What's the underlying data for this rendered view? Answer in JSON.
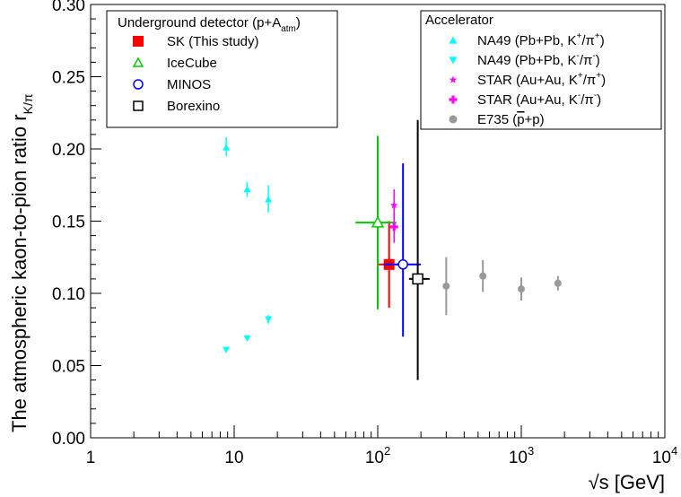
{
  "chart_data": {
    "type": "scatter",
    "xscale": "log",
    "xlim": [
      1,
      10000
    ],
    "ylim": [
      0,
      0.3
    ],
    "xlabel": "√s [GeV]",
    "ylabel": "The atmospheric kaon-to-pion ratio r",
    "ylabel_sub": "K/π",
    "x_ticks": [
      {
        "v": 1,
        "base": "1",
        "exp": ""
      },
      {
        "v": 10,
        "base": "10",
        "exp": ""
      },
      {
        "v": 100,
        "base": "10",
        "exp": "2"
      },
      {
        "v": 1000,
        "base": "10",
        "exp": "3"
      },
      {
        "v": 10000,
        "base": "10",
        "exp": "4"
      }
    ],
    "y_ticks": [
      {
        "v": 0.0,
        "label": "0.00"
      },
      {
        "v": 0.05,
        "label": "0.05"
      },
      {
        "v": 0.1,
        "label": "0.10"
      },
      {
        "v": 0.15,
        "label": "0.15"
      },
      {
        "v": 0.2,
        "label": "0.20"
      },
      {
        "v": 0.25,
        "label": "0.25"
      },
      {
        "v": 0.3,
        "label": "0.30"
      }
    ],
    "underground_legend": {
      "title_main": "Underground detector (p+A",
      "title_sub": "atm",
      "title_end": ")",
      "entries": [
        {
          "series": "sk",
          "label": "SK (This study)"
        },
        {
          "series": "icecube",
          "label": "IceCube"
        },
        {
          "series": "minos",
          "label": "MINOS"
        },
        {
          "series": "borexino",
          "label": "Borexino"
        }
      ]
    },
    "accelerator_legend": {
      "title": "Accelerator",
      "entries": [
        {
          "series": "na49_plus",
          "pre": "NA49 (Pb+Pb, K",
          "sup1": "+",
          "mid": "/π",
          "sup2": "+",
          "post": ")"
        },
        {
          "series": "na49_minus",
          "pre": "NA49 (Pb+Pb, K",
          "sup1": "-",
          "mid": "/π",
          "sup2": "-",
          "post": ")"
        },
        {
          "series": "star_plus",
          "pre": "STAR (Au+Au, K",
          "sup1": "+",
          "mid": "/π",
          "sup2": "+",
          "post": ")"
        },
        {
          "series": "star_minus",
          "pre": "STAR (Au+Au, K",
          "sup1": "-",
          "mid": "/π",
          "sup2": "-",
          "post": ")"
        },
        {
          "series": "e735",
          "pre": "E735 (",
          "over": "p",
          "mid": "+p)",
          "sup1": "",
          "sup2": "",
          "post": ""
        }
      ]
    },
    "series": [
      {
        "id": "sk",
        "marker": "square-filled",
        "color": "#ff0000",
        "points": [
          {
            "x": 120,
            "y": 0.12,
            "ylo": 0.09,
            "yhi": 0.15,
            "xlo": 100,
            "xhi": 140
          }
        ]
      },
      {
        "id": "icecube",
        "marker": "triangle-open",
        "color": "#00cc00",
        "points": [
          {
            "x": 100,
            "y": 0.149,
            "ylo": 0.089,
            "yhi": 0.209,
            "xlo": 70,
            "xhi": 135
          }
        ]
      },
      {
        "id": "minos",
        "marker": "circle-open",
        "color": "#0000ff",
        "points": [
          {
            "x": 150,
            "y": 0.12,
            "ylo": 0.07,
            "yhi": 0.19,
            "xlo": 110,
            "xhi": 200
          }
        ]
      },
      {
        "id": "borexino",
        "marker": "square-open",
        "color": "#000000",
        "points": [
          {
            "x": 190,
            "y": 0.11,
            "ylo": 0.04,
            "yhi": 0.22,
            "xlo": 165,
            "xhi": 230
          }
        ]
      },
      {
        "id": "na49_plus",
        "marker": "triangle-up-filled",
        "color": "#00ffff",
        "points": [
          {
            "x": 8.8,
            "y": 0.201,
            "ylo": 0.195,
            "yhi": 0.208
          },
          {
            "x": 12.3,
            "y": 0.172,
            "ylo": 0.167,
            "yhi": 0.177
          },
          {
            "x": 17.3,
            "y": 0.165,
            "ylo": 0.156,
            "yhi": 0.175
          }
        ]
      },
      {
        "id": "na49_minus",
        "marker": "triangle-down-filled",
        "color": "#00ffff",
        "points": [
          {
            "x": 8.8,
            "y": 0.061,
            "ylo": 0.059,
            "yhi": 0.063
          },
          {
            "x": 12.3,
            "y": 0.069,
            "ylo": 0.067,
            "yhi": 0.071
          },
          {
            "x": 17.3,
            "y": 0.082,
            "ylo": 0.079,
            "yhi": 0.085
          }
        ]
      },
      {
        "id": "star_plus",
        "marker": "star",
        "color": "#ff00ff",
        "points": [
          {
            "x": 130,
            "y": 0.161,
            "ylo": 0.15,
            "yhi": 0.172
          }
        ]
      },
      {
        "id": "star_minus",
        "marker": "cross",
        "color": "#ff00ff",
        "points": [
          {
            "x": 130,
            "y": 0.146,
            "ylo": 0.135,
            "yhi": 0.157
          }
        ]
      },
      {
        "id": "e735",
        "marker": "circle-filled",
        "color": "#999999",
        "points": [
          {
            "x": 300,
            "y": 0.105,
            "ylo": 0.085,
            "yhi": 0.125
          },
          {
            "x": 540,
            "y": 0.112,
            "ylo": 0.101,
            "yhi": 0.123
          },
          {
            "x": 1000,
            "y": 0.103,
            "ylo": 0.095,
            "yhi": 0.111
          },
          {
            "x": 1800,
            "y": 0.107,
            "ylo": 0.102,
            "yhi": 0.112
          }
        ]
      }
    ]
  }
}
